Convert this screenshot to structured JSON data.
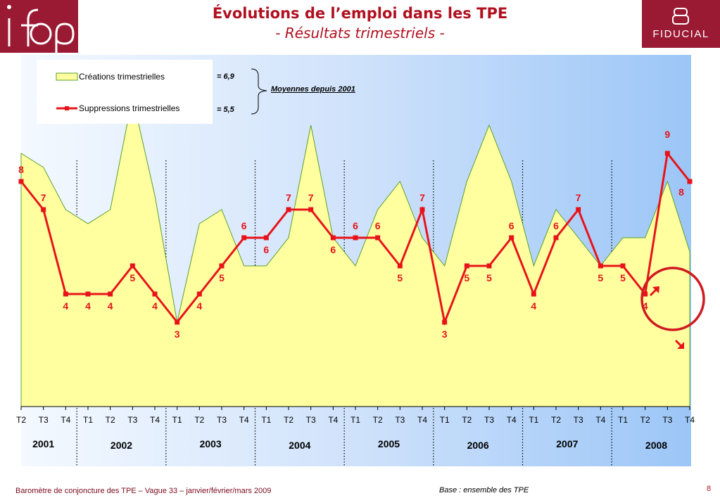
{
  "header": {
    "title": "Évolutions de l’emploi dans les TPE",
    "subtitle": "- Résultats trimestriels -",
    "logo_left": "ifop",
    "logo_right": "FIDUCIAL"
  },
  "legend": {
    "creations_label": "Créations trimestrielles",
    "suppressions_label": "Suppressions trimestrielles",
    "creations_avg": "= 6,9",
    "suppressions_avg": "= 5,5",
    "avg_note": "Moyennes depuis 2001"
  },
  "footer": {
    "left": "Baromètre de conjoncture des TPE – Vague 33 – janvier/février/mars 2009",
    "base": "Base : ensemble des TPE",
    "page": "8"
  },
  "colors": {
    "area_fill": "#ffffa0",
    "area_stroke": "#5aa02c",
    "line": "#e8131a",
    "label": "#e8131a",
    "brand": "#9a1a33",
    "circle": "#d01a22"
  },
  "chart_data": {
    "type": "area",
    "x": [
      "T2",
      "T3",
      "T4",
      "T1",
      "T2",
      "T3",
      "T4",
      "T1",
      "T2",
      "T3",
      "T4",
      "T1",
      "T2",
      "T3",
      "T4",
      "T1",
      "T2",
      "T3",
      "T4",
      "T1",
      "T2",
      "T3",
      "T4",
      "T1",
      "T2",
      "T3",
      "T4",
      "T1",
      "T2",
      "T3",
      "T4"
    ],
    "years": [
      {
        "label": "2001",
        "start": 0,
        "end": 2
      },
      {
        "label": "2002",
        "start": 3,
        "end": 6
      },
      {
        "label": "2003",
        "start": 7,
        "end": 10
      },
      {
        "label": "2004",
        "start": 11,
        "end": 14
      },
      {
        "label": "2005",
        "start": 15,
        "end": 18
      },
      {
        "label": "2006",
        "start": 19,
        "end": 22
      },
      {
        "label": "2007",
        "start": 23,
        "end": 26
      },
      {
        "label": "2008",
        "start": 27,
        "end": 30
      }
    ],
    "series": [
      {
        "name": "Créations trimestrielles",
        "type": "area",
        "values": [
          9,
          8.5,
          7,
          6.5,
          7,
          11,
          7.5,
          3,
          6.5,
          7,
          5,
          5,
          6,
          10,
          6,
          5,
          7,
          8,
          6,
          5,
          8,
          10,
          8,
          5,
          7,
          6,
          5,
          6,
          6,
          8,
          5.5
        ]
      },
      {
        "name": "Suppressions trimestrielles",
        "type": "line",
        "values": [
          8,
          7,
          4,
          4,
          4,
          5,
          4,
          3,
          4,
          5,
          6,
          6,
          7,
          7,
          6,
          6,
          6,
          5,
          7,
          3,
          5,
          5,
          6,
          4,
          6,
          7,
          5,
          5,
          4,
          9,
          8
        ]
      }
    ],
    "annotations": [
      {
        "index": 29,
        "text": "9"
      },
      {
        "index": 30,
        "text": "8"
      }
    ],
    "ylim": [
      0,
      12
    ],
    "grid": false,
    "legend": "top-left"
  }
}
